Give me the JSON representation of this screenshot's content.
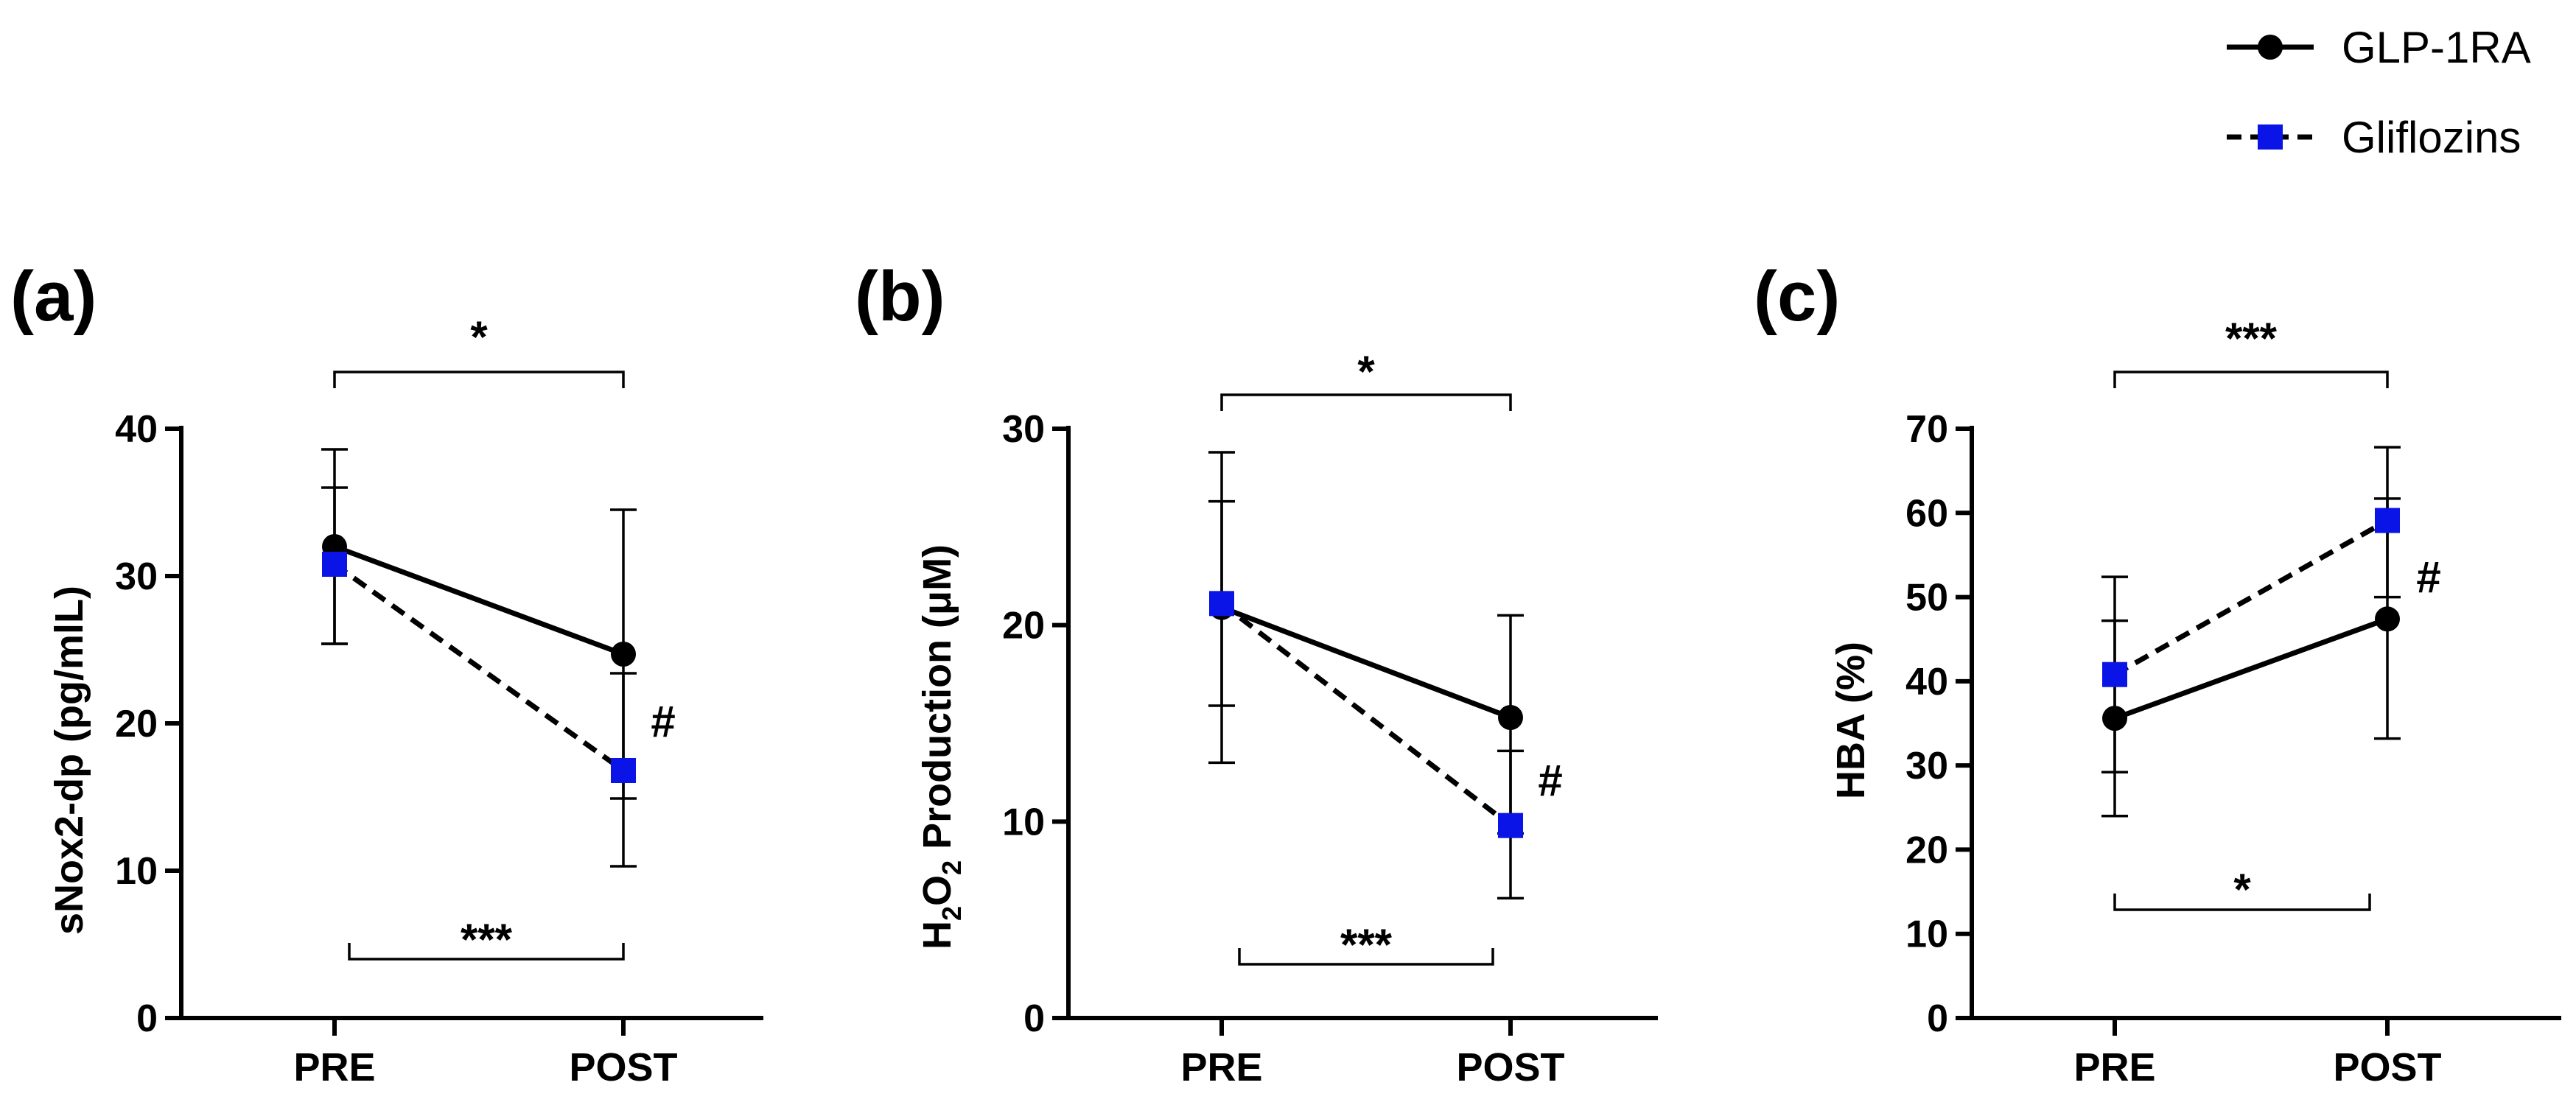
{
  "legend": [
    {
      "name": "GLP-1RA",
      "marker": "circle",
      "color": "#000000",
      "dash": "solid"
    },
    {
      "name": "Gliflozins",
      "marker": "square",
      "color": "#0a14e6",
      "dash": "dashed"
    }
  ],
  "chart_data": [
    {
      "panel": "(a)",
      "type": "line",
      "categories": [
        "PRE",
        "POST"
      ],
      "ylabel": "sNox2-dp (pg/mlL)",
      "ylim": [
        0,
        40
      ],
      "yticks": [
        0,
        10,
        20,
        30,
        40
      ],
      "series": [
        {
          "name": "GLP-1RA",
          "values": [
            32.0,
            24.7
          ],
          "err_high": [
            38.6,
            34.5
          ],
          "err_low": [
            25.4,
            14.9
          ]
        },
        {
          "name": "Gliflozins",
          "values": [
            30.8,
            16.8
          ],
          "err_high": [
            36.0,
            23.4
          ],
          "err_low": [
            25.4,
            10.3
          ]
        }
      ],
      "significance": [
        {
          "label": "*",
          "position": "top",
          "between": [
            "PRE",
            "POST"
          ]
        },
        {
          "label": "***",
          "position": "bottom",
          "between": [
            "PRE",
            "POST"
          ]
        },
        {
          "label": "#",
          "position": "right-of-post"
        }
      ]
    },
    {
      "panel": "(b)",
      "type": "line",
      "categories": [
        "PRE",
        "POST"
      ],
      "ylabel_main": "H",
      "ylabel_sub1": "2",
      "ylabel_mid": "O",
      "ylabel_sub2": "2",
      "ylabel_rest": " Production (μM)",
      "ylim": [
        0,
        30
      ],
      "yticks": [
        0,
        10,
        20,
        30
      ],
      "series": [
        {
          "name": "GLP-1RA",
          "values": [
            20.9,
            15.3
          ],
          "err_high": [
            28.8,
            20.5
          ],
          "err_low": [
            13.0,
            9.4
          ]
        },
        {
          "name": "Gliflozins",
          "values": [
            21.1,
            9.8
          ],
          "err_high": [
            26.3,
            13.6
          ],
          "err_low": [
            15.9,
            6.1
          ]
        }
      ],
      "significance": [
        {
          "label": "*",
          "position": "top",
          "between": [
            "PRE",
            "POST"
          ]
        },
        {
          "label": "***",
          "position": "bottom",
          "between": [
            "PRE",
            "POST"
          ]
        },
        {
          "label": "#",
          "position": "right-of-post"
        }
      ]
    },
    {
      "panel": "(c)",
      "type": "line",
      "categories": [
        "PRE",
        "POST"
      ],
      "ylabel": "HBA (%)",
      "ylim": [
        0,
        70
      ],
      "yticks": [
        0,
        10,
        20,
        30,
        40,
        50,
        60,
        70
      ],
      "series": [
        {
          "name": "GLP-1RA",
          "values": [
            35.6,
            47.4
          ],
          "err_high": [
            47.2,
            61.7
          ],
          "err_low": [
            24.0,
            33.2
          ]
        },
        {
          "name": "Gliflozins",
          "values": [
            40.8,
            59.1
          ],
          "err_high": [
            52.4,
            67.8
          ],
          "err_low": [
            29.2,
            50.0
          ]
        }
      ],
      "significance": [
        {
          "label": "***",
          "position": "top",
          "between": [
            "PRE",
            "POST"
          ]
        },
        {
          "label": "*",
          "position": "bottom",
          "between": [
            "PRE",
            "POST"
          ]
        },
        {
          "label": "#",
          "position": "right-of-post"
        }
      ]
    }
  ]
}
